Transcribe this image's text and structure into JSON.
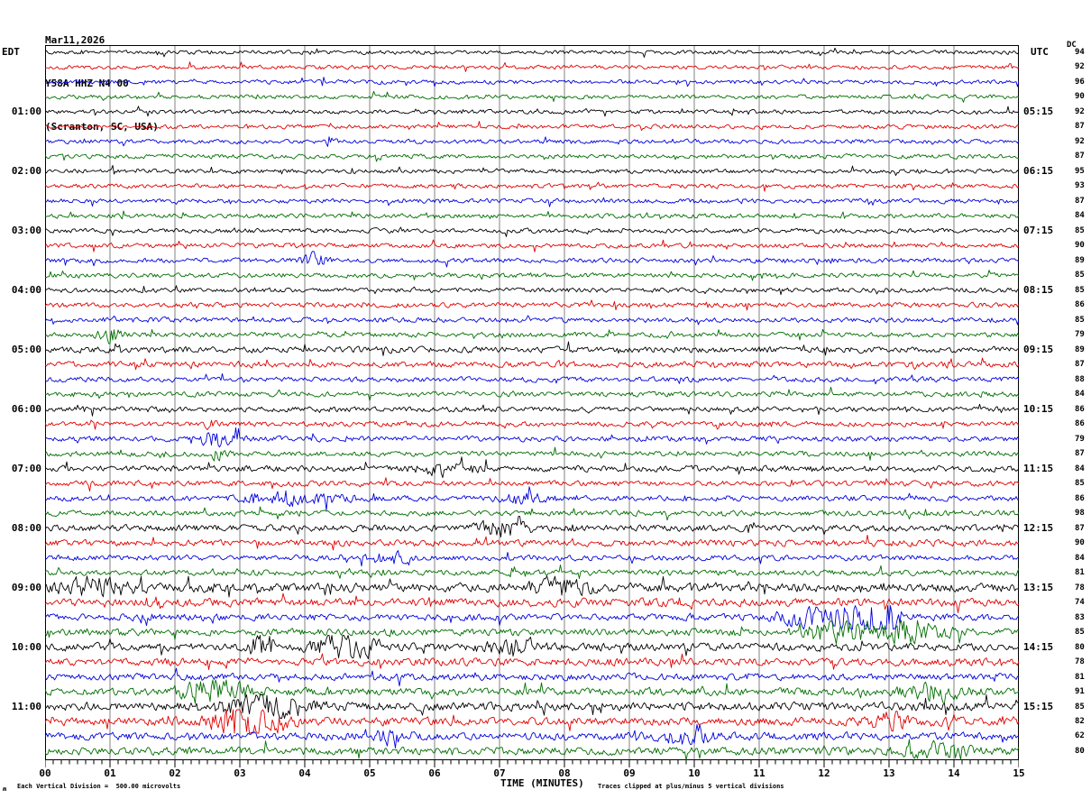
{
  "title": {
    "date": "Mar11,2026",
    "station": "Y58A HHZ N4 00",
    "location": "(Scranton, SC, USA)"
  },
  "axis_headers": {
    "left": "EDT",
    "right": "UTC",
    "dc": "DC"
  },
  "x_axis": {
    "label": "TIME (MINUTES)",
    "tick_labels": [
      "00",
      "01",
      "02",
      "03",
      "04",
      "05",
      "06",
      "07",
      "08",
      "09",
      "10",
      "11",
      "12",
      "13",
      "14",
      "15"
    ]
  },
  "footnotes": {
    "corner_glyph": "ʍ",
    "scale": "Each Vertical Division =  500.00 microvolts",
    "clip": "Traces clipped at plus/minus 5 vertical divisions"
  },
  "chart_data": {
    "type": "seismogram-helicorder",
    "date": "Mar11,2026",
    "station": "Y58A HHZ N4 00",
    "location": "(Scranton, SC, USA)",
    "timezone_left": "EDT",
    "timezone_right": "UTC",
    "minutes_per_line": 15,
    "lines": 48,
    "lines_per_hour": 4,
    "x_range_minutes": [
      0,
      15
    ],
    "grid": "vertical line each minute",
    "grid_color": "#808080",
    "trace_color_cycle": [
      "#000000",
      "#e00000",
      "#0000dd",
      "#006e00"
    ],
    "left_time_labels": [
      "01:00",
      "02:00",
      "03:00",
      "04:00",
      "05:00",
      "06:00",
      "07:00",
      "08:00",
      "09:00",
      "10:00",
      "11:00"
    ],
    "right_time_labels": [
      "05:15",
      "06:15",
      "07:15",
      "08:15",
      "09:15",
      "10:15",
      "11:15",
      "12:15",
      "13:15",
      "14:15",
      "15:15"
    ],
    "dc_values": [
      94,
      92,
      96,
      90,
      92,
      87,
      92,
      87,
      95,
      93,
      87,
      84,
      85,
      90,
      89,
      85,
      85,
      86,
      85,
      79,
      89,
      87,
      88,
      84,
      86,
      86,
      79,
      87,
      84,
      85,
      86,
      98,
      87,
      90,
      84,
      81,
      78,
      74,
      83,
      85,
      80,
      78,
      81,
      91,
      85,
      82,
      62,
      80
    ],
    "scale_note": "Each Vertical Division =  500.00 microvolts",
    "clip_note": "Traces clipped at plus/minus 5 vertical divisions",
    "line_gain": {
      "20": 1.25,
      "21": 1.2,
      "28": 1.15,
      "32": 1.2,
      "33": 1.15,
      "36": 1.55,
      "37": 1.45,
      "38": 1.15,
      "39": 1.2,
      "40": 1.35,
      "41": 1.25,
      "42": 1.15,
      "43": 1.3,
      "44": 1.4,
      "45": 1.35,
      "46": 1.25,
      "47": 1.3
    },
    "events_visual_estimate": [
      {
        "line": 6,
        "minute": 4.38,
        "sigma": 0.05,
        "gain": 3.5
      },
      {
        "line": 14,
        "minute": 4.15,
        "sigma": 0.12,
        "gain": 3.0
      },
      {
        "line": 19,
        "minute": 1.0,
        "sigma": 0.12,
        "gain": 2.8
      },
      {
        "line": 25,
        "minute": 2.55,
        "sigma": 0.06,
        "gain": 3.0
      },
      {
        "line": 26,
        "minute": 2.6,
        "sigma": 0.15,
        "gain": 3.0
      },
      {
        "line": 26,
        "minute": 2.95,
        "sigma": 0.07,
        "gain": 4.0
      },
      {
        "line": 27,
        "minute": 2.7,
        "sigma": 0.1,
        "gain": 2.2
      },
      {
        "line": 28,
        "minute": 6.2,
        "sigma": 0.3,
        "gain": 2.0
      },
      {
        "line": 30,
        "minute": 3.9,
        "sigma": 0.5,
        "gain": 2.0
      },
      {
        "line": 30,
        "minute": 7.4,
        "sigma": 0.25,
        "gain": 2.0
      },
      {
        "line": 32,
        "minute": 7.05,
        "sigma": 0.25,
        "gain": 2.4
      },
      {
        "line": 34,
        "minute": 5.3,
        "sigma": 0.2,
        "gain": 2.0
      },
      {
        "line": 36,
        "minute": 0.8,
        "sigma": 0.4,
        "gain": 1.8
      },
      {
        "line": 36,
        "minute": 7.9,
        "sigma": 0.3,
        "gain": 1.8
      },
      {
        "line": 38,
        "minute": 11.6,
        "sigma": 0.25,
        "gain": 2.0
      },
      {
        "line": 38,
        "minute": 12.45,
        "sigma": 0.4,
        "gain": 4.0
      },
      {
        "line": 38,
        "minute": 12.92,
        "sigma": 0.13,
        "gain": 8.0
      },
      {
        "line": 39,
        "minute": 12.1,
        "sigma": 0.3,
        "gain": 2.2
      },
      {
        "line": 39,
        "minute": 13.15,
        "sigma": 0.5,
        "gain": 2.8
      },
      {
        "line": 40,
        "minute": 3.35,
        "sigma": 0.15,
        "gain": 2.8
      },
      {
        "line": 40,
        "minute": 4.65,
        "sigma": 0.3,
        "gain": 3.2
      },
      {
        "line": 40,
        "minute": 7.2,
        "sigma": 0.25,
        "gain": 2.2
      },
      {
        "line": 43,
        "minute": 2.6,
        "sigma": 0.35,
        "gain": 2.8
      },
      {
        "line": 43,
        "minute": 13.7,
        "sigma": 0.3,
        "gain": 2.2
      },
      {
        "line": 44,
        "minute": 3.4,
        "sigma": 0.45,
        "gain": 2.6
      },
      {
        "line": 45,
        "minute": 3.15,
        "sigma": 0.35,
        "gain": 4.5
      },
      {
        "line": 45,
        "minute": 13.0,
        "sigma": 0.2,
        "gain": 2.0
      },
      {
        "line": 46,
        "minute": 5.35,
        "sigma": 0.15,
        "gain": 2.8
      },
      {
        "line": 46,
        "minute": 9.85,
        "sigma": 0.25,
        "gain": 2.2
      },
      {
        "line": 47,
        "minute": 13.8,
        "sigma": 0.3,
        "gain": 2.2
      }
    ]
  }
}
